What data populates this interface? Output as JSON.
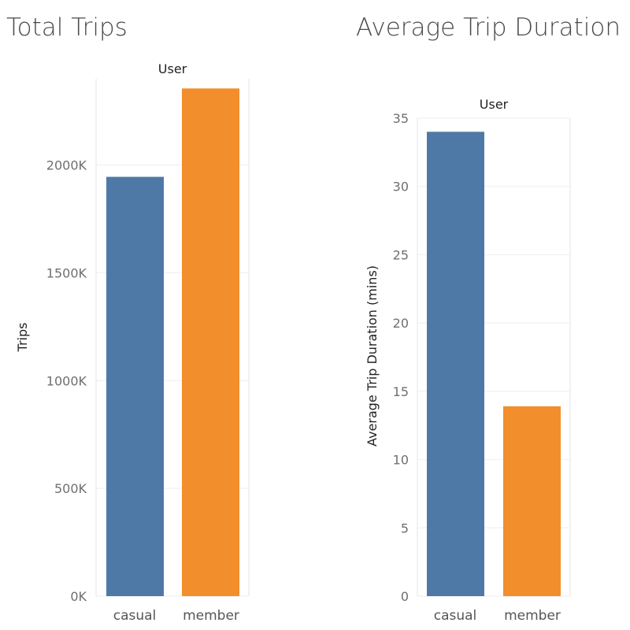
{
  "chart_data": [
    {
      "type": "bar",
      "title": "Total Trips",
      "header": "User",
      "xlabel": "",
      "ylabel": "Trips",
      "categories": [
        "casual",
        "member"
      ],
      "values": [
        1945000,
        2355000
      ],
      "ylim": [
        0,
        2400000
      ],
      "yticks": [
        0,
        500000,
        1000000,
        1500000,
        2000000
      ],
      "ytick_labels": [
        "0K",
        "500K",
        "1000K",
        "1500K",
        "2000K"
      ],
      "colors": [
        "#4e79a7",
        "#f28e2b"
      ],
      "grid": true,
      "legend": "none"
    },
    {
      "type": "bar",
      "title": "Average Trip Duration",
      "header": "User",
      "xlabel": "",
      "ylabel": "Average Trip Duration (mins)",
      "categories": [
        "casual",
        "member"
      ],
      "values": [
        34,
        13.9
      ],
      "ylim": [
        0,
        35
      ],
      "yticks": [
        0,
        5,
        10,
        15,
        20,
        25,
        30,
        35
      ],
      "ytick_labels": [
        "0",
        "5",
        "10",
        "15",
        "20",
        "25",
        "30",
        "35"
      ],
      "colors": [
        "#4e79a7",
        "#f28e2b"
      ],
      "grid": true,
      "legend": "none"
    }
  ]
}
